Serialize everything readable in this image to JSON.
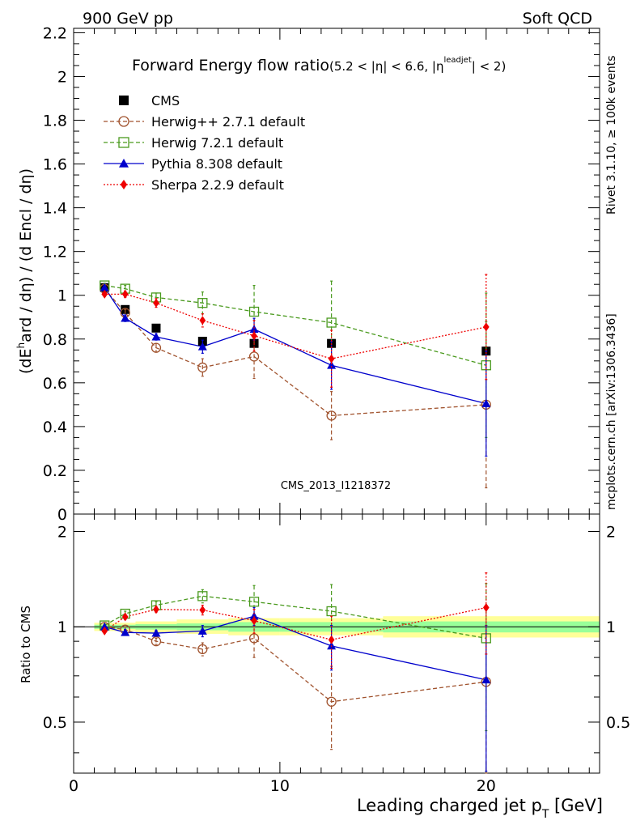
{
  "header": {
    "left": "900 GeV pp",
    "right": "Soft QCD"
  },
  "title": {
    "main": "Forward Energy flow ratio",
    "sub_pre": "(5.2 < |η| < 6.6, |η",
    "sub_sup": "leadjet",
    "sub_post": "| < 2)"
  },
  "side_labels": {
    "rivet": "Rivet 3.1.10, ≥ 100k events",
    "mcplots": "mcplots.cern.ch [arXiv:1306.3436]"
  },
  "watermark": "CMS_2013_I1218372",
  "chart_data": [
    {
      "type": "scatter",
      "ylabel": "(dE^hard / dη) / (d E^incl / dη)",
      "ylabel_parts": {
        "a": "(dE",
        "a_sup": "h",
        "b": "ard / dη) / (d E",
        "c": "ncl / dη)"
      },
      "xlim": [
        0,
        25.5
      ],
      "ylim": [
        0,
        2.22
      ],
      "yticks": [
        0,
        0.2,
        0.4,
        0.6,
        0.8,
        1,
        1.2,
        1.4,
        1.6,
        1.8,
        2,
        2.2
      ],
      "ytick_labels": [
        "0",
        "0.2",
        "0.4",
        "0.6",
        "0.8",
        "1",
        "1.2",
        "1.4",
        "1.6",
        "1.8",
        "2",
        "2.2"
      ],
      "legend_position": "top-left",
      "series": [
        {
          "name": "CMS",
          "color": "#000000",
          "marker": "square-filled",
          "line": "none",
          "x": [
            1.5,
            2.5,
            4,
            6.25,
            8.75,
            12.5,
            20
          ],
          "y": [
            1.035,
            0.935,
            0.85,
            0.79,
            0.78,
            0.78,
            0.745
          ],
          "err": [
            0.01,
            0.01,
            0.01,
            0.01,
            0.01,
            0.01,
            0.01
          ]
        },
        {
          "name": "Herwig++ 2.7.1 default",
          "color": "#a0522d",
          "marker": "circle-open",
          "line": "dashed",
          "x": [
            1.5,
            2.5,
            4,
            6.25,
            8.75,
            12.5,
            20
          ],
          "y": [
            1.03,
            0.92,
            0.76,
            0.67,
            0.72,
            0.45,
            0.5
          ],
          "err": [
            0.01,
            0.015,
            0.02,
            0.04,
            0.1,
            0.11,
            0.38
          ]
        },
        {
          "name": "Herwig 7.2.1 default",
          "color": "#4a9a1e",
          "marker": "square-open",
          "line": "dashed",
          "x": [
            1.5,
            2.5,
            4,
            6.25,
            8.75,
            12.5,
            20
          ],
          "y": [
            1.045,
            1.03,
            0.99,
            0.965,
            0.925,
            0.875,
            0.68
          ],
          "err": [
            0.01,
            0.015,
            0.02,
            0.05,
            0.12,
            0.19,
            0.33
          ]
        },
        {
          "name": "Pythia 8.308 default",
          "color": "#0000cc",
          "marker": "triangle-filled",
          "line": "solid",
          "x": [
            1.5,
            2.5,
            4,
            6.25,
            8.75,
            12.5,
            20
          ],
          "y": [
            1.035,
            0.895,
            0.81,
            0.765,
            0.845,
            0.68,
            0.505
          ],
          "err": [
            0.01,
            0.015,
            0.015,
            0.03,
            0.05,
            0.11,
            0.24
          ]
        },
        {
          "name": "Sherpa 2.2.9 default",
          "color": "#ee0000",
          "marker": "diamond-filled",
          "line": "dotted",
          "x": [
            1.5,
            2.5,
            4,
            6.25,
            8.75,
            12.5,
            20
          ],
          "y": [
            1.005,
            1.005,
            0.965,
            0.885,
            0.815,
            0.71,
            0.855
          ],
          "err": [
            0.01,
            0.015,
            0.02,
            0.03,
            0.07,
            0.13,
            0.24
          ]
        }
      ]
    },
    {
      "type": "scatter",
      "ylabel": "Ratio to CMS",
      "xlabel": "Leading charged jet p",
      "xlabel_sub": "T",
      "xlabel_unit": " [GeV]",
      "xlim": [
        0,
        25.5
      ],
      "xticks": [
        0,
        10,
        20
      ],
      "xtick_labels": [
        "0",
        "10",
        "20"
      ],
      "ylim": [
        0.345,
        2.27
      ],
      "y_scale": "log",
      "yticks": [
        0.5,
        1,
        2
      ],
      "ytick_labels": [
        "0.5",
        "1",
        "2"
      ],
      "bands": [
        {
          "kind": "yellow",
          "color": "#ffff99",
          "segments": [
            {
              "x0": 1,
              "x1": 2,
              "lo": 0.97,
              "hi": 1.03
            },
            {
              "x0": 2,
              "x1": 3,
              "lo": 0.97,
              "hi": 1.03
            },
            {
              "x0": 3,
              "x1": 5,
              "lo": 0.96,
              "hi": 1.04
            },
            {
              "x0": 5,
              "x1": 7.5,
              "lo": 0.95,
              "hi": 1.055
            },
            {
              "x0": 7.5,
              "x1": 10,
              "lo": 0.94,
              "hi": 1.065
            },
            {
              "x0": 10,
              "x1": 15,
              "lo": 0.94,
              "hi": 1.065
            },
            {
              "x0": 15,
              "x1": 25.5,
              "lo": 0.925,
              "hi": 1.08
            }
          ]
        },
        {
          "kind": "green",
          "color": "#99ff99",
          "segments": [
            {
              "x0": 1,
              "x1": 2,
              "lo": 0.985,
              "hi": 1.015
            },
            {
              "x0": 2,
              "x1": 3,
              "lo": 0.985,
              "hi": 1.015
            },
            {
              "x0": 3,
              "x1": 5,
              "lo": 0.98,
              "hi": 1.02
            },
            {
              "x0": 5,
              "x1": 7.5,
              "lo": 0.975,
              "hi": 1.025
            },
            {
              "x0": 7.5,
              "x1": 10,
              "lo": 0.965,
              "hi": 1.035
            },
            {
              "x0": 10,
              "x1": 15,
              "lo": 0.965,
              "hi": 1.035
            },
            {
              "x0": 15,
              "x1": 25.5,
              "lo": 0.96,
              "hi": 1.04
            }
          ]
        }
      ],
      "series": [
        {
          "name": "Herwig++ 2.7.1 default",
          "color": "#a0522d",
          "marker": "circle-open",
          "line": "dashed",
          "x": [
            1.5,
            2.5,
            4,
            6.25,
            8.75,
            12.5,
            20
          ],
          "y": [
            1.0,
            0.98,
            0.9,
            0.85,
            0.92,
            0.58,
            0.67
          ],
          "err": [
            0.01,
            0.02,
            0.02,
            0.04,
            0.12,
            0.17,
            0.5
          ]
        },
        {
          "name": "Herwig 7.2.1 default",
          "color": "#4a9a1e",
          "marker": "square-open",
          "line": "dashed",
          "x": [
            1.5,
            2.5,
            4,
            6.25,
            8.75,
            12.5,
            20
          ],
          "y": [
            1.01,
            1.1,
            1.17,
            1.25,
            1.2,
            1.12,
            0.92
          ],
          "err": [
            0.01,
            0.02,
            0.03,
            0.06,
            0.15,
            0.24,
            0.45
          ]
        },
        {
          "name": "Pythia 8.308 default",
          "color": "#0000cc",
          "marker": "triangle-filled",
          "line": "solid",
          "x": [
            1.5,
            2.5,
            4,
            6.25,
            8.75,
            12.5,
            20
          ],
          "y": [
            1.0,
            0.96,
            0.955,
            0.97,
            1.08,
            0.87,
            0.68
          ],
          "err": [
            0.01,
            0.02,
            0.02,
            0.04,
            0.07,
            0.14,
            0.33
          ]
        },
        {
          "name": "Sherpa 2.2.9 default",
          "color": "#ee0000",
          "marker": "diamond-filled",
          "line": "dotted",
          "x": [
            1.5,
            2.5,
            4,
            6.25,
            8.75,
            12.5,
            20
          ],
          "y": [
            0.97,
            1.075,
            1.135,
            1.13,
            1.045,
            0.91,
            1.15
          ],
          "err": [
            0.01,
            0.02,
            0.025,
            0.04,
            0.09,
            0.17,
            0.33
          ]
        }
      ]
    }
  ]
}
